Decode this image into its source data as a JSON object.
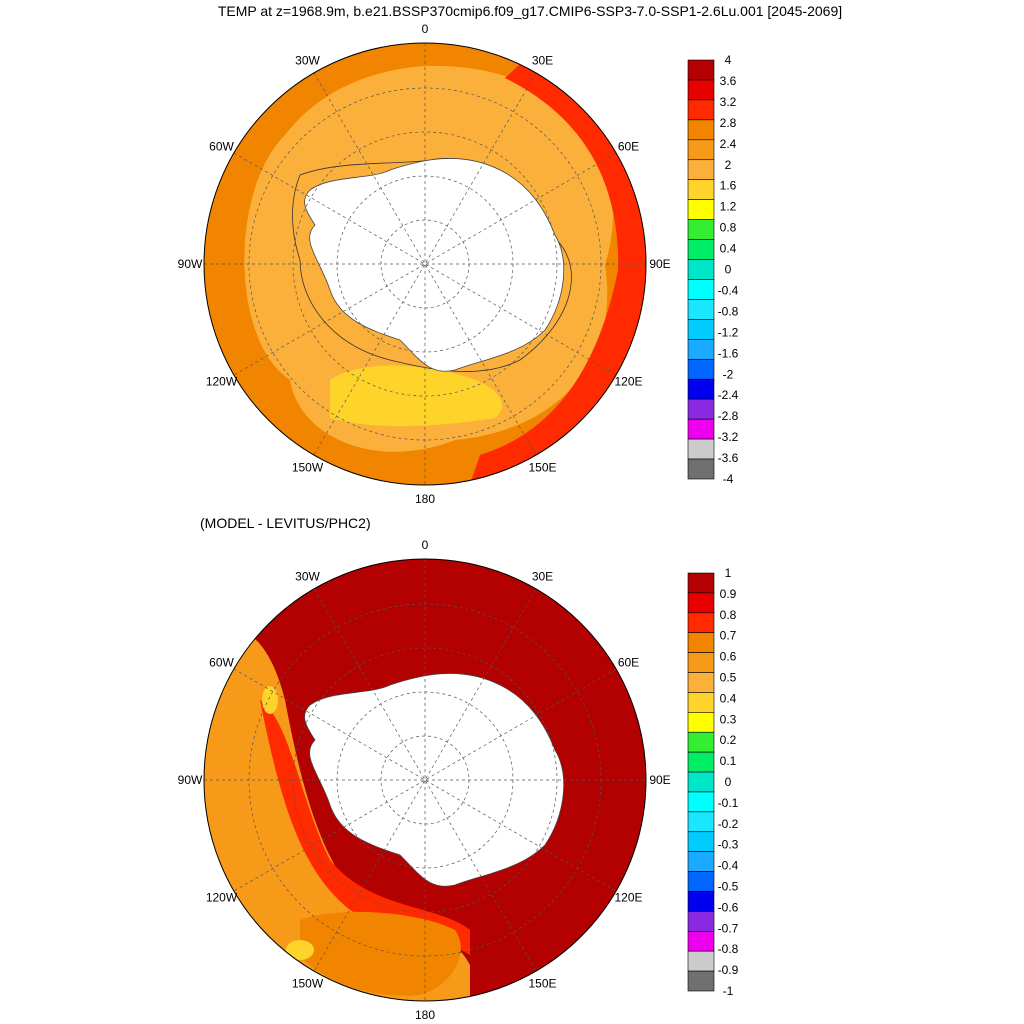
{
  "figure": {
    "title": "TEMP at z=1968.9m, b.e21.BSSP370cmip6.f09_g17.CMIP6-SSP3-7.0-SSP1-2.6Lu.001 [2045-2069]"
  },
  "colors": {
    "land": "#ffffff",
    "coast": "#444444",
    "border": "#000000",
    "grid": "#555555"
  },
  "chart_data": [
    {
      "type": "heatmap",
      "projection": "south-polar-stereographic",
      "title": "",
      "subtitle": "",
      "lon_labels": [
        "0",
        "30E",
        "60E",
        "90E",
        "120E",
        "150E",
        "180",
        "150W",
        "120W",
        "90W",
        "60W",
        "30W"
      ],
      "lat_circles": [
        -40,
        -50,
        -60,
        -70,
        -80
      ],
      "grid": true,
      "colorbar": {
        "levels": [
          "4",
          "3.6",
          "3.2",
          "2.8",
          "2.4",
          "2",
          "1.6",
          "1.2",
          "0.8",
          "0.4",
          "0",
          "-0.4",
          "-0.8",
          "-1.2",
          "-1.6",
          "-2",
          "-2.4",
          "-2.8",
          "-3.2",
          "-3.6",
          "-4"
        ],
        "colors": [
          "#b30000",
          "#e60000",
          "#ff2a00",
          "#f28500",
          "#f79a1a",
          "#fbb03b",
          "#ffd42a",
          "#ffff00",
          "#33ee33",
          "#00ee66",
          "#00e6c8",
          "#00ffff",
          "#1ae6ff",
          "#00ccff",
          "#1aaaff",
          "#0066ff",
          "#0000ee",
          "#8a2be2",
          "#ee00ee",
          "#cccccc",
          "#707070"
        ]
      },
      "fields": {
        "outer": 2.4,
        "middle": 2.2,
        "inner": 2.1,
        "ross_sector": 1.4,
        "indian_east_sector": 3.3,
        "shelf_ring_outer": 2.2
      }
    },
    {
      "type": "heatmap",
      "projection": "south-polar-stereographic",
      "title": "(MODEL - LEVITUS/PHC2)",
      "lon_labels": [
        "0",
        "30E",
        "60E",
        "90E",
        "120E",
        "150E",
        "180",
        "150W",
        "120W",
        "90W",
        "60W",
        "30W"
      ],
      "lat_circles": [
        -40,
        -50,
        -60,
        -70,
        -80
      ],
      "grid": true,
      "colorbar": {
        "levels": [
          "1",
          "0.9",
          "0.8",
          "0.7",
          "0.6",
          "0.5",
          "0.4",
          "0.3",
          "0.2",
          "0.1",
          "0",
          "-0.1",
          "-0.2",
          "-0.3",
          "-0.4",
          "-0.5",
          "-0.6",
          "-0.7",
          "-0.8",
          "-0.9",
          "-1"
        ],
        "colors": [
          "#b30000",
          "#e60000",
          "#ff2a00",
          "#f28500",
          "#f79a1a",
          "#fbb03b",
          "#ffd42a",
          "#ffff00",
          "#33ee33",
          "#00ee66",
          "#00e6c8",
          "#00ffff",
          "#1ae6ff",
          "#00ccff",
          "#1aaaff",
          "#0066ff",
          "#0000ee",
          "#8a2be2",
          "#ee00ee",
          "#cccccc",
          "#707070"
        ]
      },
      "fields": {
        "main": 1.0,
        "pacific_west_band": 0.55,
        "inner_band": 0.85,
        "ross_gyre": 0.65,
        "patch_low": 0.35
      }
    }
  ]
}
